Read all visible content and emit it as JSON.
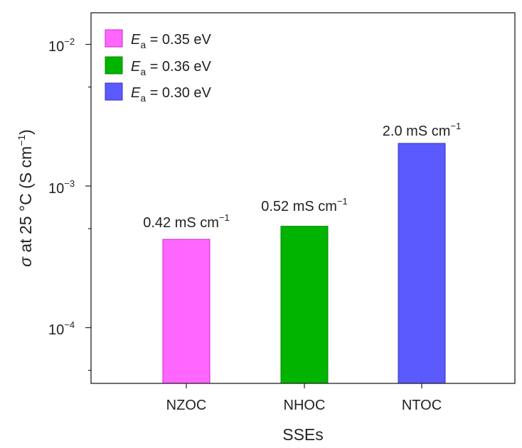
{
  "chart_data": {
    "type": "bar",
    "yscale": "log",
    "categories": [
      "NZOC",
      "NHOC",
      "NTOC"
    ],
    "values": [
      0.00042,
      0.00052,
      0.002
    ],
    "ylim": [
      4e-05,
      0.02
    ],
    "yticks": [
      {
        "value": 0.01,
        "base": "10",
        "exp": "−2"
      },
      {
        "value": 0.001,
        "base": "10",
        "exp": "−3"
      },
      {
        "value": 0.0001,
        "base": "10",
        "exp": "−4"
      }
    ],
    "xlabel": "SSEs",
    "ylabel": {
      "symbol": "σ",
      "text": " at 25 °C (S cm",
      "sup": "−1",
      "close": ")"
    },
    "colors": [
      "#ff66ff",
      "#00b400",
      "#5a5aff"
    ],
    "edge_colors": [
      "#cc22cc",
      "#008800",
      "#3333bb"
    ],
    "data_labels": [
      {
        "text": "0.42 mS cm",
        "sup": "−1"
      },
      {
        "text": "0.52 mS cm",
        "sup": "−1"
      },
      {
        "text": "2.0 mS cm",
        "sup": "−1"
      }
    ],
    "legend": [
      {
        "symbol": "E",
        "sub": "a",
        "text": " = 0.35 eV",
        "color": "#ff66ff"
      },
      {
        "symbol": "E",
        "sub": "a",
        "text": " = 0.36 eV",
        "color": "#00b400"
      },
      {
        "symbol": "E",
        "sub": "a",
        "text": " = 0.30 eV",
        "color": "#5a5aff"
      }
    ],
    "legend_position": "top-left"
  }
}
